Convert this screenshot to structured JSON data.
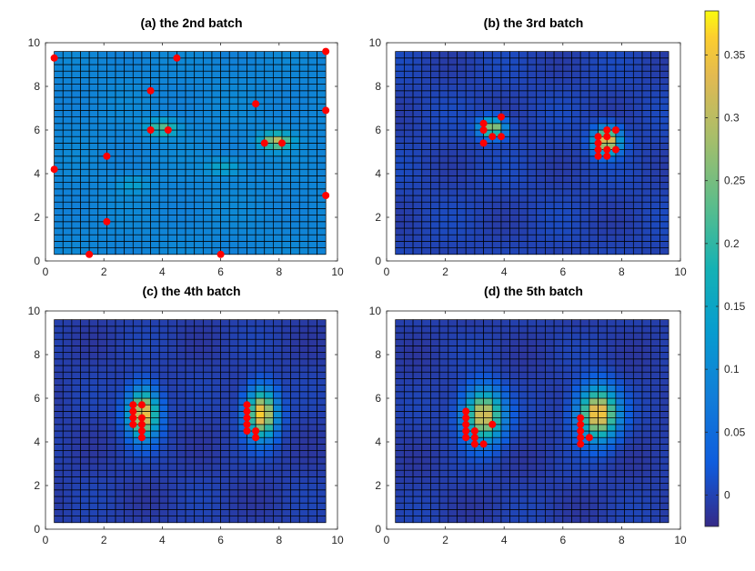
{
  "chart_data": [
    {
      "type": "heatmap",
      "title": "(a) the 2nd batch",
      "xlim": [
        0,
        10
      ],
      "ylim": [
        0,
        10
      ],
      "xticks": [
        0,
        2,
        4,
        6,
        8,
        10
      ],
      "yticks": [
        0,
        2,
        4,
        6,
        8,
        10
      ],
      "grid": true,
      "background_level": 0.09,
      "surface_extent": [
        0.3,
        9.6,
        0.3,
        9.6
      ],
      "hotspots": [
        {
          "x": 4.0,
          "y": 6.1,
          "peak": 0.23,
          "sx": 0.35,
          "sy": 0.25
        },
        {
          "x": 7.9,
          "y": 5.5,
          "peak": 0.3,
          "sx": 0.35,
          "sy": 0.25
        },
        {
          "x": 6.1,
          "y": 4.3,
          "peak": 0.16,
          "sx": 0.4,
          "sy": 0.25
        },
        {
          "x": 3.0,
          "y": 3.5,
          "peak": 0.14,
          "sx": 0.35,
          "sy": 0.25
        }
      ],
      "samples": [
        {
          "x": 0.3,
          "y": 9.3
        },
        {
          "x": 4.5,
          "y": 9.3
        },
        {
          "x": 9.6,
          "y": 9.6
        },
        {
          "x": 3.6,
          "y": 7.8
        },
        {
          "x": 7.2,
          "y": 7.2
        },
        {
          "x": 9.6,
          "y": 6.9
        },
        {
          "x": 3.6,
          "y": 6.0
        },
        {
          "x": 4.2,
          "y": 6.0
        },
        {
          "x": 7.5,
          "y": 5.4
        },
        {
          "x": 8.1,
          "y": 5.4
        },
        {
          "x": 2.1,
          "y": 4.8
        },
        {
          "x": 0.3,
          "y": 4.2
        },
        {
          "x": 9.6,
          "y": 3.0
        },
        {
          "x": 2.1,
          "y": 1.8
        },
        {
          "x": 1.5,
          "y": 0.3
        },
        {
          "x": 6.0,
          "y": 0.3
        }
      ]
    },
    {
      "type": "heatmap",
      "title": "(b) the 3rd batch",
      "xlim": [
        0,
        10
      ],
      "ylim": [
        0,
        10
      ],
      "xticks": [
        0,
        2,
        4,
        6,
        8,
        10
      ],
      "yticks": [
        0,
        2,
        4,
        6,
        8,
        10
      ],
      "grid": true,
      "background_level": 0.0,
      "surface_extent": [
        0.3,
        9.6,
        0.3,
        9.6
      ],
      "hotspots": [
        {
          "x": 3.6,
          "y": 6.1,
          "peak": 0.3,
          "sx": 0.3,
          "sy": 0.3
        },
        {
          "x": 7.5,
          "y": 5.5,
          "peak": 0.37,
          "sx": 0.3,
          "sy": 0.4
        }
      ],
      "samples": [
        {
          "x": 3.9,
          "y": 6.6
        },
        {
          "x": 3.3,
          "y": 6.3
        },
        {
          "x": 3.3,
          "y": 6.0
        },
        {
          "x": 3.6,
          "y": 5.7
        },
        {
          "x": 3.9,
          "y": 5.7
        },
        {
          "x": 3.3,
          "y": 5.4
        },
        {
          "x": 7.5,
          "y": 6.0
        },
        {
          "x": 7.8,
          "y": 6.0
        },
        {
          "x": 7.2,
          "y": 5.7
        },
        {
          "x": 7.5,
          "y": 5.7
        },
        {
          "x": 7.2,
          "y": 5.4
        },
        {
          "x": 7.2,
          "y": 5.1
        },
        {
          "x": 7.5,
          "y": 5.1
        },
        {
          "x": 7.8,
          "y": 5.1
        },
        {
          "x": 7.2,
          "y": 4.8
        },
        {
          "x": 7.5,
          "y": 4.8
        }
      ]
    },
    {
      "type": "heatmap",
      "title": "(c) the 4th batch",
      "xlim": [
        0,
        10
      ],
      "ylim": [
        0,
        10
      ],
      "xticks": [
        0,
        2,
        4,
        6,
        8,
        10
      ],
      "yticks": [
        0,
        2,
        4,
        6,
        8,
        10
      ],
      "grid": true,
      "background_level": -0.005,
      "surface_extent": [
        0.3,
        9.6,
        0.3,
        9.6
      ],
      "hotspots": [
        {
          "x": 3.35,
          "y": 5.3,
          "peak": 0.36,
          "sx": 0.35,
          "sy": 0.75
        },
        {
          "x": 7.4,
          "y": 5.3,
          "peak": 0.37,
          "sx": 0.35,
          "sy": 0.75
        }
      ],
      "samples": [
        {
          "x": 3.0,
          "y": 5.7
        },
        {
          "x": 3.3,
          "y": 5.7
        },
        {
          "x": 3.0,
          "y": 5.4
        },
        {
          "x": 3.0,
          "y": 5.1
        },
        {
          "x": 3.3,
          "y": 5.1
        },
        {
          "x": 3.0,
          "y": 4.8
        },
        {
          "x": 3.3,
          "y": 4.8
        },
        {
          "x": 3.3,
          "y": 4.5
        },
        {
          "x": 3.3,
          "y": 4.2
        },
        {
          "x": 6.9,
          "y": 5.7
        },
        {
          "x": 6.9,
          "y": 5.4
        },
        {
          "x": 6.9,
          "y": 5.1
        },
        {
          "x": 6.9,
          "y": 4.8
        },
        {
          "x": 6.9,
          "y": 4.5
        },
        {
          "x": 7.2,
          "y": 4.5
        },
        {
          "x": 7.2,
          "y": 4.2
        }
      ]
    },
    {
      "type": "heatmap",
      "title": "(d) the 5th batch",
      "xlim": [
        0,
        10
      ],
      "ylim": [
        0,
        10
      ],
      "xticks": [
        0,
        2,
        4,
        6,
        8,
        10
      ],
      "yticks": [
        0,
        2,
        4,
        6,
        8,
        10
      ],
      "grid": true,
      "background_level": -0.005,
      "surface_extent": [
        0.3,
        9.6,
        0.3,
        9.6
      ],
      "hotspots": [
        {
          "x": 3.3,
          "y": 5.2,
          "peak": 0.34,
          "sx": 0.45,
          "sy": 0.8
        },
        {
          "x": 7.2,
          "y": 5.3,
          "peak": 0.37,
          "sx": 0.45,
          "sy": 0.8
        }
      ],
      "samples": [
        {
          "x": 2.7,
          "y": 5.4
        },
        {
          "x": 2.7,
          "y": 5.1
        },
        {
          "x": 2.7,
          "y": 4.8
        },
        {
          "x": 2.7,
          "y": 4.5
        },
        {
          "x": 2.7,
          "y": 4.2
        },
        {
          "x": 3.0,
          "y": 4.5
        },
        {
          "x": 3.0,
          "y": 4.2
        },
        {
          "x": 3.0,
          "y": 3.9
        },
        {
          "x": 3.3,
          "y": 3.9
        },
        {
          "x": 3.6,
          "y": 4.8
        },
        {
          "x": 6.6,
          "y": 4.8
        },
        {
          "x": 6.6,
          "y": 4.5
        },
        {
          "x": 6.6,
          "y": 4.2
        },
        {
          "x": 6.6,
          "y": 3.9
        },
        {
          "x": 6.9,
          "y": 4.2
        },
        {
          "x": 6.6,
          "y": 5.1
        }
      ]
    }
  ],
  "colorbar": {
    "colormap": "parula",
    "limits": [
      -0.025,
      0.385
    ],
    "ticks": [
      0,
      0.05,
      0.1,
      0.15,
      0.2,
      0.25,
      0.3,
      0.35
    ],
    "tick_labels": [
      "0",
      "0.05",
      "0.1",
      "0.15",
      "0.2",
      "0.25",
      "0.3",
      "0.35"
    ]
  },
  "colors": {
    "sample_marker": "#ff0000",
    "mesh_line": "#000000"
  }
}
